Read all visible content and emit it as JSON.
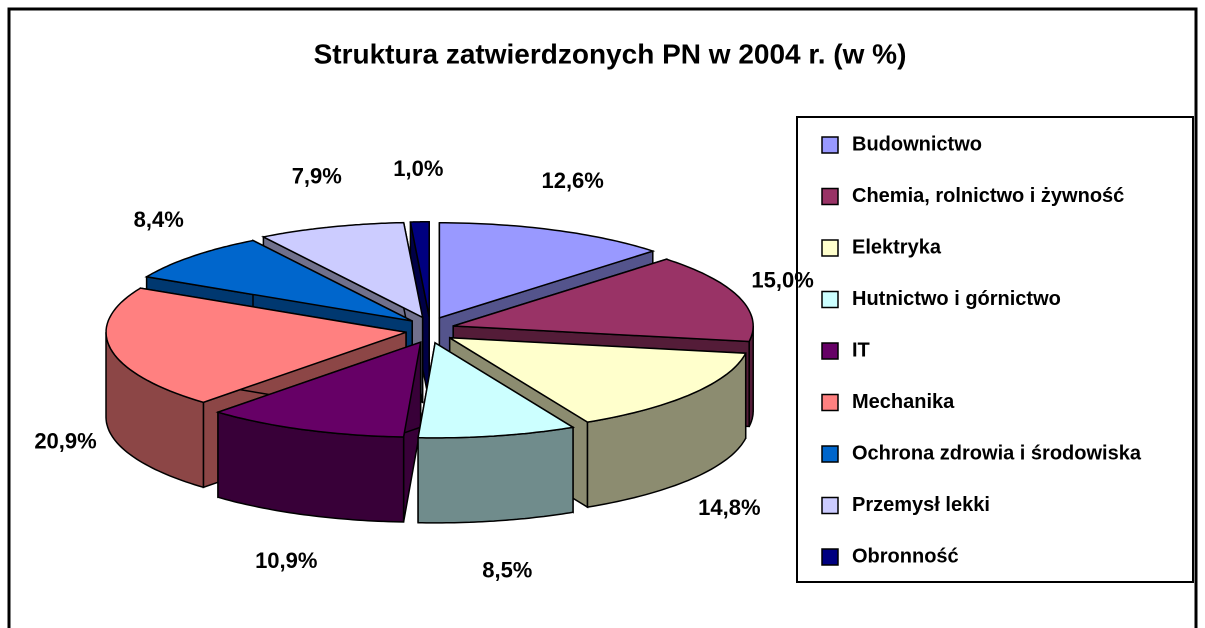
{
  "chart_data": {
    "type": "pie",
    "title": "Struktura zatwierdzonych PN w 2004 r. (w %)",
    "categories": [
      "Budownictwo",
      "Chemia, rolnictwo i żywność",
      "Elektryka",
      "Hutnictwo i górnictwo",
      "IT",
      "Mechanika",
      "Ochrona zdrowia i środowiska",
      "Przemysł lekki",
      "Obronność"
    ],
    "values": [
      12.6,
      15.0,
      14.8,
      8.5,
      10.9,
      20.9,
      8.4,
      7.9,
      1.0
    ],
    "value_labels": [
      "12,6%",
      "15,0%",
      "14,8%",
      "8,5%",
      "10,9%",
      "20,9%",
      "8,4%",
      "7,9%",
      "1,0%"
    ],
    "colors": [
      "#9999ff",
      "#993366",
      "#ffffcc",
      "#ccffff",
      "#660066",
      "#ff8080",
      "#0066cc",
      "#ccccff",
      "#000080"
    ],
    "legend": "right"
  }
}
